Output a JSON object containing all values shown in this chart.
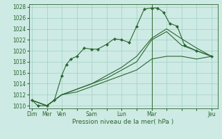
{
  "background_color": "#ceeae4",
  "grid_color": "#9ecfc4",
  "line_color": "#2a6630",
  "marker_color": "#2a6630",
  "xlabel": "Pression niveau de la mer( hPa )",
  "ylim": [
    1009.5,
    1028.5
  ],
  "yticks": [
    1010,
    1012,
    1014,
    1016,
    1018,
    1020,
    1022,
    1024,
    1026,
    1028
  ],
  "xtick_labels": [
    "Dim",
    "Mer",
    "Ven",
    "",
    "Sam",
    "",
    "Lun",
    "",
    "Mar",
    "",
    "",
    "",
    "Jeu"
  ],
  "xtick_positions": [
    0,
    1,
    2,
    3,
    4,
    5,
    6,
    7,
    8,
    9,
    10,
    11,
    12
  ],
  "xlim": [
    -0.2,
    12.4
  ],
  "lines": [
    {
      "x": [
        0,
        0.4,
        1,
        1.5,
        2,
        2.3,
        2.6,
        3,
        3.5,
        4,
        4.4,
        5,
        5.5,
        6,
        6.5,
        7,
        7.5,
        8,
        8.4,
        8.8,
        9.2,
        9.7,
        10.2,
        11,
        12
      ],
      "y": [
        1011,
        1010,
        1010,
        1011,
        1015.5,
        1017.5,
        1018.5,
        1019,
        1020.5,
        1020.3,
        1020.3,
        1021.2,
        1022.2,
        1022,
        1021.5,
        1024.5,
        1027.6,
        1027.8,
        1027.8,
        1027,
        1025,
        1024.5,
        1021,
        1020,
        1019
      ],
      "has_markers": true
    },
    {
      "x": [
        0,
        1,
        2,
        3,
        4,
        5,
        6,
        7,
        8,
        9,
        10,
        11,
        12
      ],
      "y": [
        1011,
        1010,
        1012,
        1013,
        1014,
        1015.5,
        1017,
        1019,
        1022.3,
        1024.0,
        1022.2,
        1020.5,
        1019
      ],
      "has_markers": false
    },
    {
      "x": [
        0,
        1,
        2,
        3,
        4,
        5,
        6,
        7,
        8,
        9,
        10,
        11,
        12
      ],
      "y": [
        1011,
        1010,
        1012,
        1013,
        1014,
        1015,
        1016.5,
        1018,
        1022.0,
        1023.5,
        1021,
        1020,
        1019
      ],
      "has_markers": false
    },
    {
      "x": [
        0,
        1,
        2,
        3,
        4,
        5,
        6,
        7,
        8,
        9,
        10,
        11,
        12
      ],
      "y": [
        1011,
        1010,
        1012,
        1012.5,
        1013.5,
        1014.5,
        1015.5,
        1016.5,
        1018.5,
        1019.0,
        1019.0,
        1018.5,
        1019
      ],
      "has_markers": false
    }
  ],
  "vline_x": 8,
  "marker_size": 2.2,
  "linewidth": 0.8,
  "tick_fontsize": 5.5,
  "xlabel_fontsize": 6.5
}
